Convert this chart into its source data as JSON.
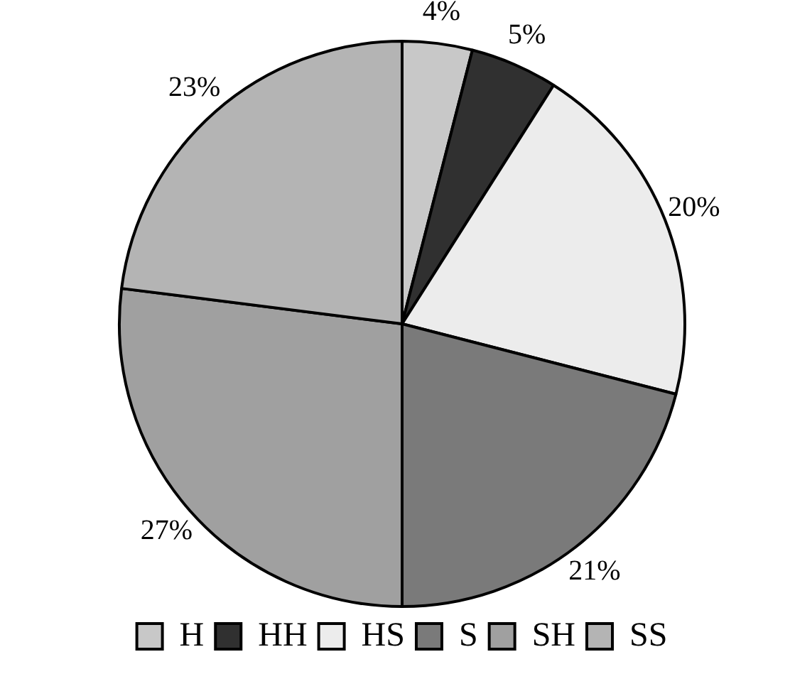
{
  "chart_data": {
    "type": "pie",
    "categories": [
      "H",
      "HH",
      "HS",
      "S",
      "SH",
      "SS"
    ],
    "values": [
      4,
      5,
      20,
      21,
      27,
      23
    ],
    "value_labels": [
      "4%",
      "5%",
      "20%",
      "21%",
      "27%",
      "23%"
    ],
    "colors": [
      "#c8c8c8",
      "#303030",
      "#ececec",
      "#7a7a7a",
      "#a0a0a0",
      "#b4b4b4"
    ],
    "legend": "bottom"
  }
}
